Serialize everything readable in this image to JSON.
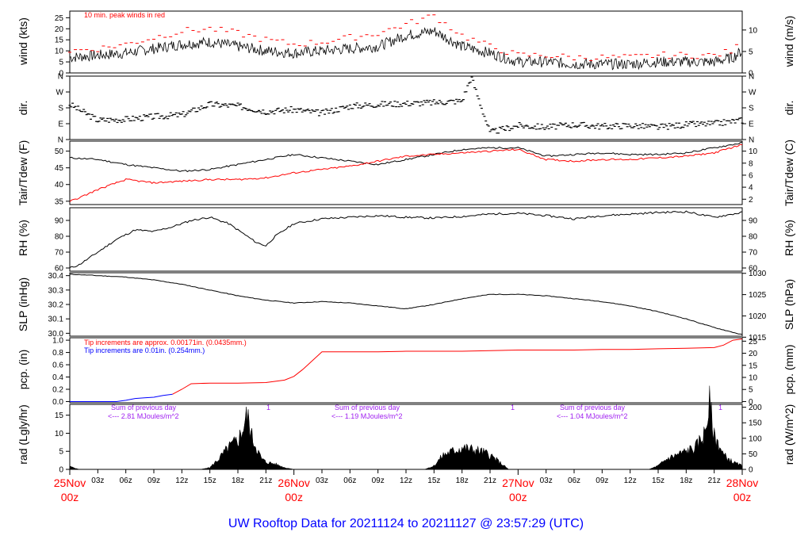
{
  "title": "UW Rooftop Data for 20211124  to  20211127 @ 23:57:29  (UTC)",
  "colors": {
    "frame": "#000000",
    "red": "#ff0000",
    "blue": "#0000ff",
    "purple": "#a020f0",
    "fill": "#000000"
  },
  "x_axis": {
    "hour_ticks": [
      "03z",
      "06z",
      "09z",
      "12z",
      "15z",
      "18z",
      "21z"
    ],
    "days": [
      {
        "label": "25Nov",
        "sub": "00z"
      },
      {
        "label": "26Nov",
        "sub": "00z"
      },
      {
        "label": "27Nov",
        "sub": "00z"
      },
      {
        "label": "28Nov",
        "sub": "00z"
      }
    ]
  },
  "panels": {
    "wind": {
      "ylabel": "wind (kts)",
      "ylabel_right": "wind (m/s)",
      "yticks": [
        0,
        5,
        10,
        15,
        20,
        25
      ],
      "yticks_right": [
        0,
        5,
        10
      ],
      "note": "10 min. peak winds in red"
    },
    "dir": {
      "ylabel": "dir.",
      "ylabel_right": "dir.",
      "yticks": [
        "N",
        "E",
        "S",
        "W",
        "N"
      ]
    },
    "temp": {
      "ylabel": "Tair/Tdew (F)",
      "ylabel_right": "Tair/Tdew (C)",
      "yticks": [
        35,
        40,
        45,
        50
      ],
      "yticks_right": [
        2,
        4,
        6,
        8,
        10
      ]
    },
    "rh": {
      "ylabel": "RH (%)",
      "ylabel_right": "RH (%)",
      "yticks": [
        60,
        70,
        80,
        90
      ],
      "yticks_right": [
        60,
        70,
        80,
        90
      ]
    },
    "slp": {
      "ylabel": "SLP (inHg)",
      "ylabel_right": "SLP (hPa)",
      "yticks": [
        "30.0",
        "30.1",
        "30.2",
        "30.3",
        "30.4"
      ],
      "yticks_right": [
        1015,
        1020,
        1025,
        1030
      ]
    },
    "pcp": {
      "ylabel": "pcp. (in)",
      "ylabel_right": "pcp. (mm)",
      "yticks": [
        "0.0",
        "0.2",
        "0.4",
        "0.6",
        "0.8",
        "1.0"
      ],
      "yticks_right": [
        0,
        5,
        10,
        15,
        20,
        25
      ],
      "note_red": "Tip increments are approx. 0.00171in. (0.0435mm.)",
      "note_blue": "Tip increments are 0.01in. (0.254mm.)"
    },
    "rad": {
      "ylabel": "rad (Lgly/hr)",
      "ylabel_right": "rad (W/m^2)",
      "yticks": [
        0,
        5,
        10,
        15
      ],
      "yticks_right": [
        0,
        50,
        100,
        150,
        200
      ],
      "sums": [
        {
          "line1": "Sum of previous day",
          "line2": "<--- 2.81 MJoules/m^2"
        },
        {
          "line1": "Sum of previous day",
          "line2": "<--- 1.19 MJoules/m^2"
        },
        {
          "line1": "Sum of previous day",
          "line2": "<--- 1.04 MJoules/m^2"
        }
      ],
      "marker": "1"
    }
  },
  "chart_data": [
    {
      "type": "line",
      "panel": "wind",
      "ylim": [
        0,
        28
      ],
      "xlim_hours": [
        0,
        72
      ],
      "series": [
        {
          "color": "#000000",
          "x": [
            0,
            3,
            6,
            9,
            12,
            15,
            18,
            21,
            24,
            27,
            30,
            33,
            36,
            39,
            42,
            45,
            48,
            51,
            54,
            57,
            60,
            63,
            66,
            69,
            71,
            72
          ],
          "values": [
            7,
            8,
            9,
            11,
            13,
            14,
            12,
            10,
            9,
            10,
            11,
            12,
            17,
            19,
            12,
            9,
            5,
            5,
            4,
            4,
            4,
            5,
            5,
            5,
            7,
            10
          ]
        },
        {
          "color": "#ff0000",
          "x": [
            0,
            3,
            6,
            9,
            12,
            15,
            18,
            21,
            24,
            27,
            30,
            33,
            36,
            39,
            42,
            45,
            48,
            51,
            54,
            57,
            60,
            63,
            66,
            69,
            71,
            72
          ],
          "values": [
            10,
            11,
            13,
            16,
            19,
            20,
            18,
            15,
            13,
            14,
            16,
            18,
            22,
            26,
            17,
            12,
            8,
            8,
            7,
            7,
            7,
            8,
            8,
            8,
            10,
            14
          ]
        }
      ]
    },
    {
      "type": "scatter",
      "panel": "dir",
      "ylim_degrees": [
        0,
        360
      ],
      "x": [
        0,
        3,
        6,
        9,
        12,
        15,
        18,
        21,
        24,
        27,
        30,
        33,
        36,
        39,
        42,
        43,
        45,
        48,
        51,
        54,
        57,
        60,
        63,
        66,
        69,
        72
      ],
      "values": [
        200,
        110,
        115,
        130,
        140,
        200,
        190,
        160,
        170,
        150,
        190,
        200,
        205,
        210,
        220,
        355,
        40,
        80,
        70,
        85,
        75,
        80,
        70,
        85,
        90,
        110
      ]
    },
    {
      "type": "line",
      "panel": "temp",
      "ylim": [
        34,
        53
      ],
      "xlim_hours": [
        0,
        72
      ],
      "series": [
        {
          "color": "#000000",
          "x": [
            0,
            3,
            6,
            9,
            12,
            15,
            18,
            21,
            24,
            27,
            30,
            33,
            36,
            39,
            42,
            45,
            48,
            51,
            54,
            57,
            60,
            63,
            66,
            69,
            72
          ],
          "values": [
            48,
            47.5,
            46,
            45,
            44,
            44.5,
            46,
            47.5,
            49,
            48,
            47,
            46,
            47.5,
            49,
            50.5,
            51,
            51,
            48.5,
            49,
            49.5,
            49,
            49,
            49.5,
            51,
            52.5
          ]
        },
        {
          "color": "#ff0000",
          "x": [
            0,
            1,
            3,
            6,
            9,
            12,
            15,
            18,
            21,
            24,
            27,
            30,
            33,
            36,
            39,
            42,
            45,
            48,
            51,
            54,
            57,
            60,
            63,
            66,
            69,
            72
          ],
          "values": [
            35,
            36,
            38.5,
            41.5,
            40.5,
            41,
            41.5,
            41.5,
            42,
            43.5,
            44.5,
            45.5,
            47,
            48.5,
            49,
            49.5,
            50,
            50.5,
            47.5,
            47,
            47.5,
            47.5,
            48,
            48.5,
            49.5,
            52
          ]
        }
      ]
    },
    {
      "type": "line",
      "panel": "rh",
      "ylim": [
        58,
        98
      ],
      "xlim_hours": [
        0,
        72
      ],
      "series": [
        {
          "color": "#000000",
          "x": [
            0,
            1,
            3,
            5,
            7,
            9,
            11,
            13,
            15,
            17,
            18,
            19,
            20,
            21,
            22,
            24,
            27,
            30,
            33,
            36,
            39,
            42,
            45,
            48,
            51,
            54,
            57,
            60,
            63,
            66,
            69,
            72
          ],
          "values": [
            60,
            62,
            70,
            78,
            84,
            83,
            86,
            90,
            92,
            88,
            84,
            80,
            76,
            74,
            80,
            88,
            91,
            92,
            93,
            92,
            91.5,
            92.5,
            94,
            94.5,
            93,
            91,
            93,
            94,
            95,
            95.5,
            92,
            95
          ]
        }
      ]
    },
    {
      "type": "line",
      "panel": "slp",
      "ylim": [
        29.98,
        30.42
      ],
      "xlim_hours": [
        0,
        72
      ],
      "series": [
        {
          "color": "#000000",
          "x": [
            0,
            3,
            6,
            9,
            12,
            15,
            18,
            21,
            24,
            27,
            30,
            33,
            36,
            39,
            42,
            45,
            48,
            51,
            54,
            57,
            60,
            63,
            66,
            69,
            72
          ],
          "values": [
            30.41,
            30.4,
            30.39,
            30.37,
            30.34,
            30.3,
            30.26,
            30.23,
            30.21,
            30.22,
            30.21,
            30.19,
            30.17,
            30.2,
            30.24,
            30.27,
            30.27,
            30.26,
            30.24,
            30.22,
            30.19,
            30.15,
            30.1,
            30.04,
            29.99
          ]
        }
      ]
    },
    {
      "type": "line",
      "panel": "pcp",
      "ylim": [
        -0.02,
        1.04
      ],
      "xlim_hours": [
        0,
        72
      ],
      "series": [
        {
          "color": "#0000ff",
          "x": [
            0,
            3,
            5,
            6,
            7,
            8,
            9,
            10,
            11
          ],
          "values": [
            0,
            0,
            0,
            0.02,
            0.05,
            0.06,
            0.07,
            0.1,
            0.12
          ]
        },
        {
          "color": "#ff0000",
          "x": [
            11,
            12,
            13,
            15,
            18,
            21,
            23,
            24,
            25,
            27,
            30,
            33,
            36,
            39,
            42,
            45,
            48,
            51,
            54,
            57,
            60,
            63,
            66,
            69,
            70,
            71,
            72
          ],
          "values": [
            0.12,
            0.2,
            0.29,
            0.3,
            0.3,
            0.31,
            0.35,
            0.41,
            0.53,
            0.81,
            0.81,
            0.81,
            0.82,
            0.82,
            0.82,
            0.83,
            0.84,
            0.84,
            0.84,
            0.85,
            0.85,
            0.86,
            0.87,
            0.88,
            0.92,
            1.0,
            1.02
          ]
        }
      ]
    },
    {
      "type": "area",
      "panel": "rad",
      "ylim": [
        0,
        18
      ],
      "xlim_hours": [
        0,
        72
      ],
      "series": [
        {
          "color": "#000000",
          "x": [
            0,
            1,
            14,
            15,
            16,
            17,
            18,
            18.5,
            19,
            19.5,
            20,
            20.5,
            21,
            22,
            23,
            24,
            38,
            39,
            40,
            41,
            42,
            43,
            44,
            45,
            46,
            47,
            62,
            63,
            64,
            65,
            66,
            67,
            68,
            68.5,
            69,
            69.5,
            70,
            71,
            72
          ],
          "values": [
            0.8,
            0,
            0,
            0.5,
            3,
            6,
            8,
            11,
            15,
            9,
            6,
            3,
            2,
            1.5,
            0.5,
            0,
            0,
            1,
            4,
            5,
            6,
            5.5,
            5,
            4,
            2,
            0,
            0,
            1,
            3,
            4,
            5,
            6,
            10,
            18,
            9,
            7,
            4,
            2,
            1
          ]
        }
      ]
    }
  ]
}
